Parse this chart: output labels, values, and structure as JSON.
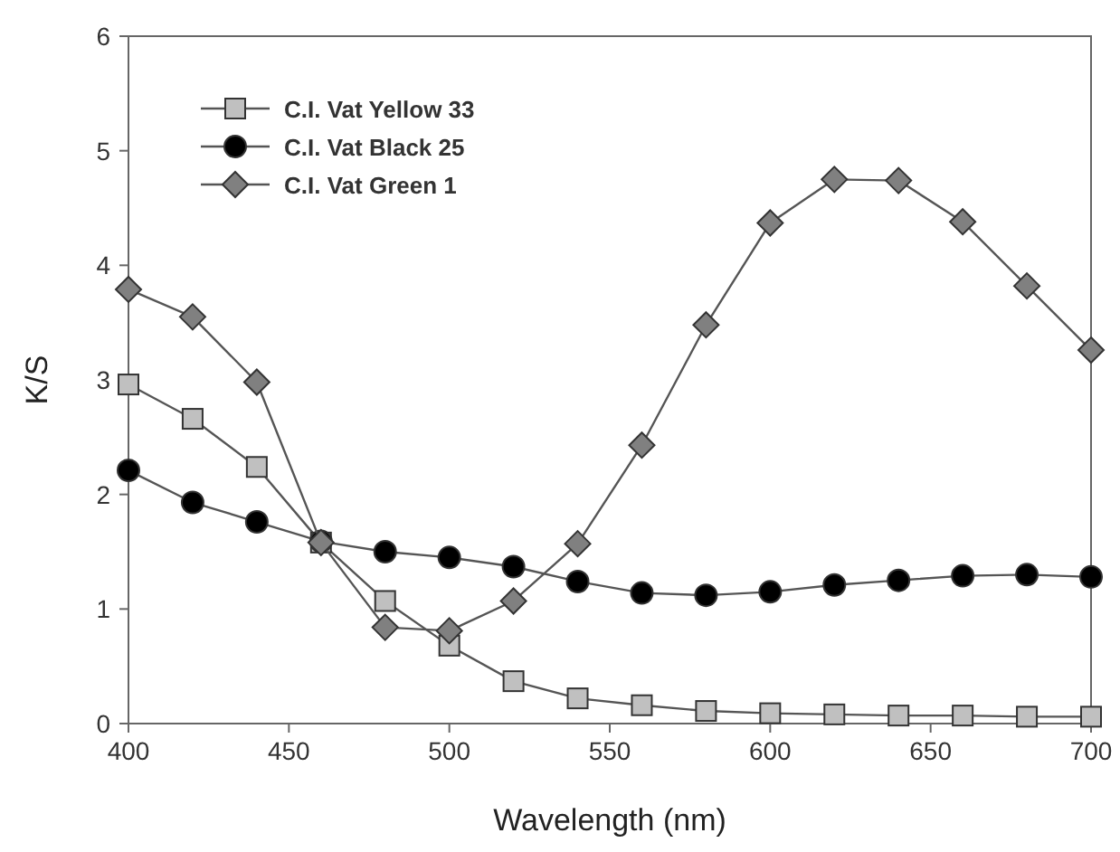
{
  "chart_data": {
    "type": "line",
    "xlabel": "Wavelength (nm)",
    "ylabel": "K/S",
    "x": [
      400,
      420,
      440,
      460,
      480,
      500,
      520,
      540,
      560,
      580,
      600,
      620,
      640,
      660,
      680,
      700
    ],
    "xlim": [
      400,
      700
    ],
    "xticks": [
      400,
      450,
      500,
      550,
      600,
      650,
      700
    ],
    "ylim": [
      0,
      6
    ],
    "yticks": [
      0,
      1,
      2,
      3,
      4,
      5,
      6
    ],
    "legend": "top left",
    "grid": false,
    "series": [
      {
        "name": "C.I. Vat Yellow 33",
        "color": "#c0c0c0",
        "marker": "square",
        "values": [
          2.96,
          2.66,
          2.24,
          1.58,
          1.07,
          0.68,
          0.37,
          0.22,
          0.16,
          0.11,
          0.09,
          0.08,
          0.07,
          0.07,
          0.06,
          0.06
        ]
      },
      {
        "name": "C.I. Vat Black 25",
        "color": "#000000",
        "marker": "circle",
        "values": [
          2.21,
          1.93,
          1.76,
          1.59,
          1.5,
          1.45,
          1.37,
          1.24,
          1.14,
          1.12,
          1.15,
          1.21,
          1.25,
          1.29,
          1.3,
          1.28
        ]
      },
      {
        "name": "C.I. Vat Green 1",
        "color": "#808080",
        "marker": "diamond",
        "values": [
          3.79,
          3.55,
          2.98,
          1.58,
          0.84,
          0.81,
          1.07,
          1.57,
          2.43,
          3.48,
          4.37,
          4.75,
          4.74,
          4.38,
          3.82,
          3.26
        ]
      }
    ]
  }
}
